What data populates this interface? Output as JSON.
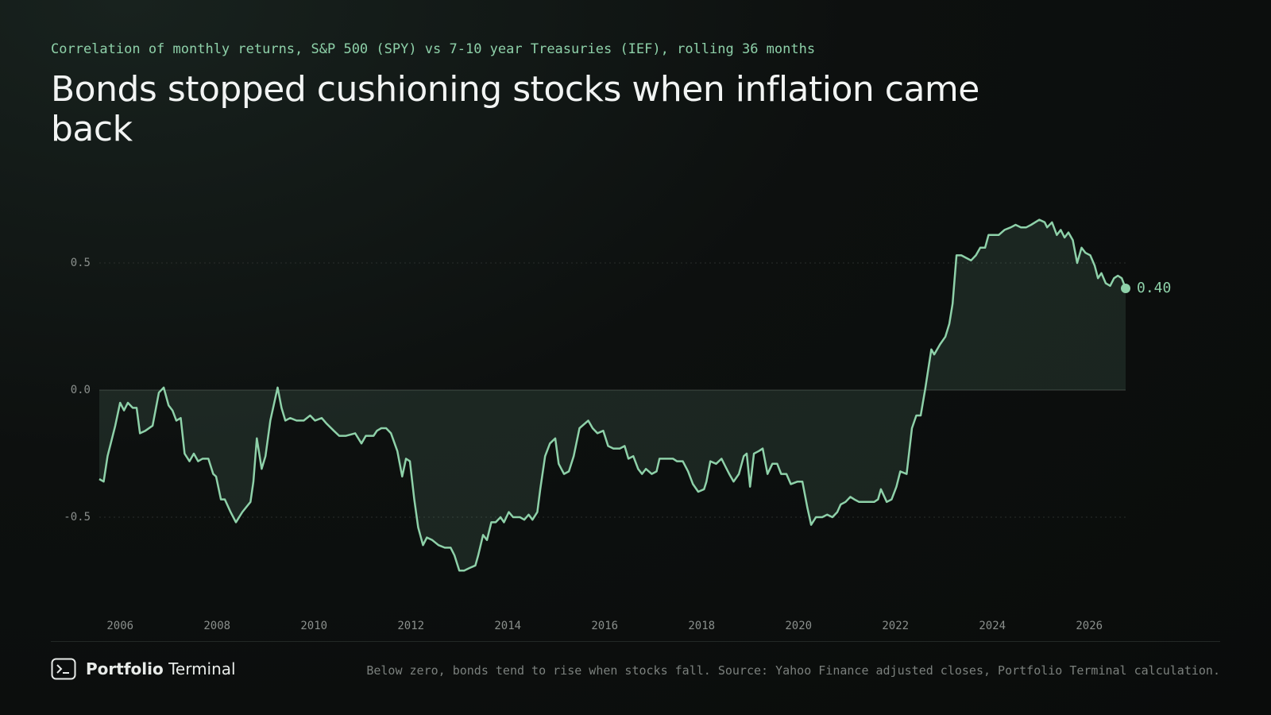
{
  "chart_data": {
    "type": "area",
    "subtitle": "Correlation of monthly returns, S&P 500 (SPY) vs 7-10 year Treasuries (IEF), rolling 36 months",
    "title": "Bonds stopped cushioning stocks when inflation came back",
    "x": [
      2005.57,
      2005.66,
      2005.74,
      2005.9,
      2006.0,
      2006.08,
      2006.16,
      2006.26,
      2006.34,
      2006.41,
      2006.52,
      2006.67,
      2006.8,
      2006.9,
      2007.0,
      2007.08,
      2007.16,
      2007.25,
      2007.33,
      2007.43,
      2007.52,
      2007.61,
      2007.7,
      2007.82,
      2007.92,
      2007.98,
      2008.08,
      2008.16,
      2008.28,
      2008.39,
      2008.52,
      2008.69,
      2008.75,
      2008.82,
      2008.92,
      2009.0,
      2009.1,
      2009.25,
      2009.33,
      2009.41,
      2009.51,
      2009.64,
      2009.79,
      2009.92,
      2010.02,
      2010.16,
      2010.25,
      2010.41,
      2010.52,
      2010.66,
      2010.85,
      2010.98,
      2011.07,
      2011.23,
      2011.3,
      2011.39,
      2011.49,
      2011.59,
      2011.72,
      2011.82,
      2011.9,
      2011.98,
      2012.07,
      2012.15,
      2012.25,
      2012.33,
      2012.44,
      2012.57,
      2012.7,
      2012.82,
      2012.9,
      2013.0,
      2013.1,
      2013.21,
      2013.33,
      2013.39,
      2013.49,
      2013.57,
      2013.66,
      2013.75,
      2013.85,
      2013.92,
      2014.02,
      2014.11,
      2014.25,
      2014.34,
      2014.43,
      2014.51,
      2014.61,
      2014.67,
      2014.77,
      2014.87,
      2014.98,
      2015.05,
      2015.16,
      2015.26,
      2015.36,
      2015.48,
      2015.66,
      2015.75,
      2015.85,
      2015.97,
      2016.07,
      2016.18,
      2016.31,
      2016.41,
      2016.49,
      2016.59,
      2016.69,
      2016.77,
      2016.85,
      2016.97,
      2017.07,
      2017.13,
      2017.3,
      2017.41,
      2017.49,
      2017.61,
      2017.72,
      2017.82,
      2017.93,
      2018.05,
      2018.1,
      2018.18,
      2018.3,
      2018.41,
      2018.49,
      2018.57,
      2018.66,
      2018.77,
      2018.87,
      2018.93,
      2019.0,
      2019.08,
      2019.18,
      2019.26,
      2019.36,
      2019.46,
      2019.56,
      2019.64,
      2019.75,
      2019.84,
      2019.98,
      2020.08,
      2020.18,
      2020.26,
      2020.36,
      2020.49,
      2020.59,
      2020.7,
      2020.8,
      2020.87,
      2020.97,
      2021.07,
      2021.15,
      2021.25,
      2021.43,
      2021.56,
      2021.64,
      2021.7,
      2021.82,
      2021.92,
      2022.02,
      2022.1,
      2022.23,
      2022.34,
      2022.43,
      2022.52,
      2022.61,
      2022.74,
      2022.8,
      2022.92,
      2023.03,
      2023.11,
      2023.18,
      2023.26,
      2023.36,
      2023.46,
      2023.56,
      2023.66,
      2023.75,
      2023.85,
      2023.92,
      2024.02,
      2024.13,
      2024.25,
      2024.38,
      2024.48,
      2024.59,
      2024.7,
      2024.8,
      2024.97,
      2025.08,
      2025.13,
      2025.23,
      2025.33,
      2025.41,
      2025.49,
      2025.57,
      2025.66,
      2025.75,
      2025.84,
      2025.92,
      2026.02,
      2026.11,
      2026.18,
      2026.25,
      2026.34,
      2026.43,
      2026.51,
      2026.59,
      2026.67,
      2026.75
    ],
    "values": [
      -0.35,
      -0.36,
      -0.26,
      -0.14,
      -0.05,
      -0.08,
      -0.05,
      -0.07,
      -0.07,
      -0.17,
      -0.16,
      -0.14,
      -0.01,
      0.01,
      -0.06,
      -0.08,
      -0.12,
      -0.11,
      -0.25,
      -0.28,
      -0.25,
      -0.28,
      -0.27,
      -0.27,
      -0.33,
      -0.34,
      -0.43,
      -0.43,
      -0.48,
      -0.52,
      -0.48,
      -0.44,
      -0.36,
      -0.19,
      -0.31,
      -0.26,
      -0.12,
      0.01,
      -0.07,
      -0.12,
      -0.11,
      -0.12,
      -0.12,
      -0.1,
      -0.12,
      -0.11,
      -0.13,
      -0.16,
      -0.18,
      -0.18,
      -0.17,
      -0.21,
      -0.18,
      -0.18,
      -0.16,
      -0.15,
      -0.15,
      -0.17,
      -0.24,
      -0.34,
      -0.27,
      -0.28,
      -0.43,
      -0.54,
      -0.61,
      -0.58,
      -0.59,
      -0.61,
      -0.62,
      -0.62,
      -0.65,
      -0.71,
      -0.71,
      -0.7,
      -0.69,
      -0.65,
      -0.57,
      -0.59,
      -0.52,
      -0.52,
      -0.5,
      -0.52,
      -0.48,
      -0.5,
      -0.5,
      -0.51,
      -0.49,
      -0.51,
      -0.48,
      -0.39,
      -0.26,
      -0.21,
      -0.19,
      -0.29,
      -0.33,
      -0.32,
      -0.26,
      -0.15,
      -0.12,
      -0.15,
      -0.17,
      -0.16,
      -0.22,
      -0.23,
      -0.23,
      -0.22,
      -0.27,
      -0.26,
      -0.31,
      -0.33,
      -0.31,
      -0.33,
      -0.32,
      -0.27,
      -0.27,
      -0.27,
      -0.28,
      -0.28,
      -0.32,
      -0.37,
      -0.4,
      -0.39,
      -0.36,
      -0.28,
      -0.29,
      -0.27,
      -0.3,
      -0.33,
      -0.36,
      -0.33,
      -0.26,
      -0.25,
      -0.38,
      -0.25,
      -0.24,
      -0.23,
      -0.33,
      -0.29,
      -0.29,
      -0.33,
      -0.33,
      -0.37,
      -0.36,
      -0.36,
      -0.46,
      -0.53,
      -0.5,
      -0.5,
      -0.49,
      -0.5,
      -0.48,
      -0.45,
      -0.44,
      -0.42,
      -0.43,
      -0.44,
      -0.44,
      -0.44,
      -0.43,
      -0.39,
      -0.44,
      -0.43,
      -0.38,
      -0.32,
      -0.33,
      -0.15,
      -0.1,
      -0.1,
      0.0,
      0.16,
      0.14,
      0.18,
      0.21,
      0.26,
      0.34,
      0.53,
      0.53,
      0.52,
      0.51,
      0.53,
      0.56,
      0.56,
      0.61,
      0.61,
      0.61,
      0.63,
      0.64,
      0.65,
      0.64,
      0.64,
      0.65,
      0.67,
      0.66,
      0.64,
      0.66,
      0.61,
      0.63,
      0.6,
      0.62,
      0.59,
      0.5,
      0.56,
      0.54,
      0.53,
      0.49,
      0.44,
      0.46,
      0.42,
      0.41,
      0.44,
      0.45,
      0.44,
      0.4
    ],
    "end_label": "0.40",
    "color": "#8ed1a9",
    "xlim": [
      2005.57,
      2026.75
    ],
    "ylim": [
      -0.8,
      0.75
    ],
    "xticks": [
      2006,
      2008,
      2010,
      2012,
      2014,
      2016,
      2018,
      2020,
      2022,
      2024,
      2026
    ],
    "yticks": [
      0.5,
      {
        "value": 0,
        "label": "0.0"
      },
      -0.5
    ],
    "grid": true
  },
  "footer": {
    "brand_bold": "Portfolio",
    "brand": "Terminal",
    "note": "Below zero, bonds tend to rise when stocks fall. Source: Yahoo Finance adjusted closes, Portfolio Terminal calculation."
  }
}
